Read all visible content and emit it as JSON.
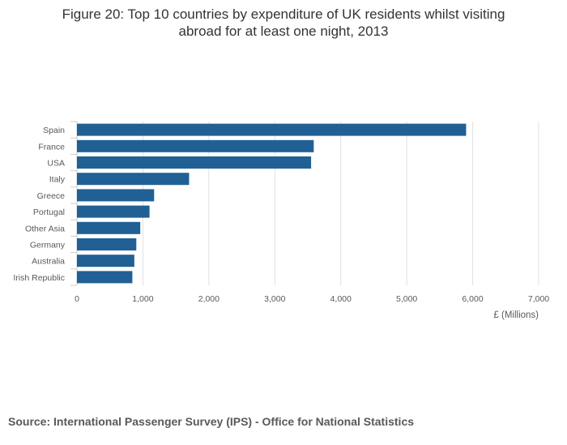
{
  "title_lines": [
    "Figure 20: Top 10 countries by expenditure of UK residents whilst visiting",
    "abroad for at least one night, 2013"
  ],
  "source": "Source: International Passenger Survey (IPS) - Office for National Statistics",
  "colors": {
    "bar": "#206095",
    "grid": "#e0e0e0",
    "axis": "#cccccc",
    "text": "#595959"
  },
  "chart_data": {
    "type": "bar",
    "orientation": "horizontal",
    "title": "Figure 20: Top 10 countries by expenditure of UK residents whilst visiting abroad for at least one night, 2013",
    "categories": [
      "Spain",
      "France",
      "USA",
      "Italy",
      "Greece",
      "Portugal",
      "Other Asia",
      "Germany",
      "Australia",
      "Irish Republic"
    ],
    "values": [
      5900,
      3590,
      3550,
      1700,
      1170,
      1100,
      960,
      900,
      870,
      840
    ],
    "xlabel": "£ (Millions)",
    "ylabel": "",
    "xlim": [
      0,
      7000
    ],
    "xticks": [
      0,
      1000,
      2000,
      3000,
      4000,
      5000,
      6000,
      7000
    ],
    "xtick_labels": [
      "0",
      "1,000",
      "2,000",
      "3,000",
      "4,000",
      "5,000",
      "6,000",
      "7,000"
    ],
    "grid": true,
    "legend": "none"
  }
}
